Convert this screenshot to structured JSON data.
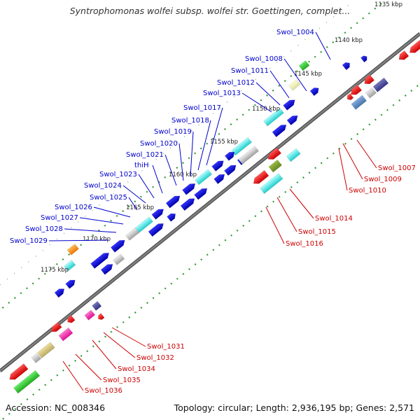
{
  "title": "Syntrophomonas wolfei subsp. wolfei str. Goettingen, complet...",
  "footer": {
    "accession": "Accession: NC_008346",
    "summary": "Topology: circular; Length: 2,936,195 bp; Genes: 2,571"
  },
  "colors": {
    "forward_label": "#0000cc",
    "reverse_label": "#cc0000",
    "backbone": "#808080",
    "tick": "#339933"
  },
  "ticks": [
    "1135 kbp",
    "1140 kbp",
    "1145 kbp",
    "1150 kbp",
    "1155 kbp",
    "1160 kbp",
    "1165 kbp",
    "1170 kbp",
    "1175 kbp"
  ],
  "labels_forward": [
    "Swol_1004",
    "Swol_1008",
    "Swol_1011",
    "Swol_1012",
    "Swol_1013",
    "Swol_1017",
    "Swol_1018",
    "Swol_1019",
    "Swol_1020",
    "Swol_1021",
    "thiH",
    "Swol_1023",
    "Swol_1024",
    "Swol_1025",
    "Swol_1026",
    "Swol_1027",
    "Swol_1028",
    "Swol_1029"
  ],
  "labels_reverse": [
    "Swol_1007",
    "Swol_1009",
    "Swol_1010",
    "Swol_1014",
    "Swol_1015",
    "Swol_1016",
    "Swol_1031",
    "Swol_1032",
    "Swol_1034",
    "Swol_1035",
    "Swol_1036"
  ]
}
